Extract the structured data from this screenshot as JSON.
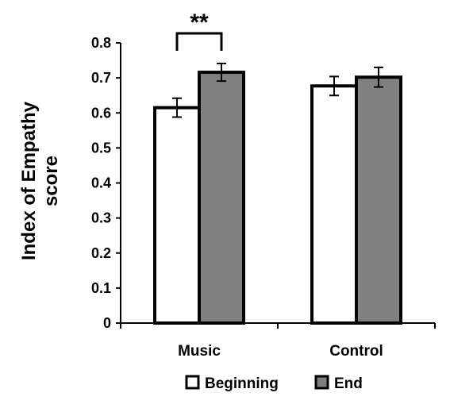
{
  "chart_data": {
    "type": "bar",
    "categories": [
      "Music",
      "Control"
    ],
    "series": [
      {
        "name": "Beginning",
        "values": [
          0.615,
          0.677
        ],
        "errors": [
          0.027,
          0.027
        ],
        "color": "#ffffff"
      },
      {
        "name": "End",
        "values": [
          0.716,
          0.702
        ],
        "errors": [
          0.025,
          0.028
        ],
        "color": "#808080"
      }
    ],
    "ylabel_lines": [
      "Index of Empathy",
      "score"
    ],
    "ylim": [
      0,
      0.8
    ],
    "yticks": [
      "0",
      "0.1",
      "0.2",
      "0.3",
      "0.4",
      "0.5",
      "0.6",
      "0.7",
      "0.8"
    ],
    "annotation": {
      "text": "**",
      "category": "Music"
    },
    "legend": {
      "placement": "bottom"
    },
    "grid": false
  }
}
